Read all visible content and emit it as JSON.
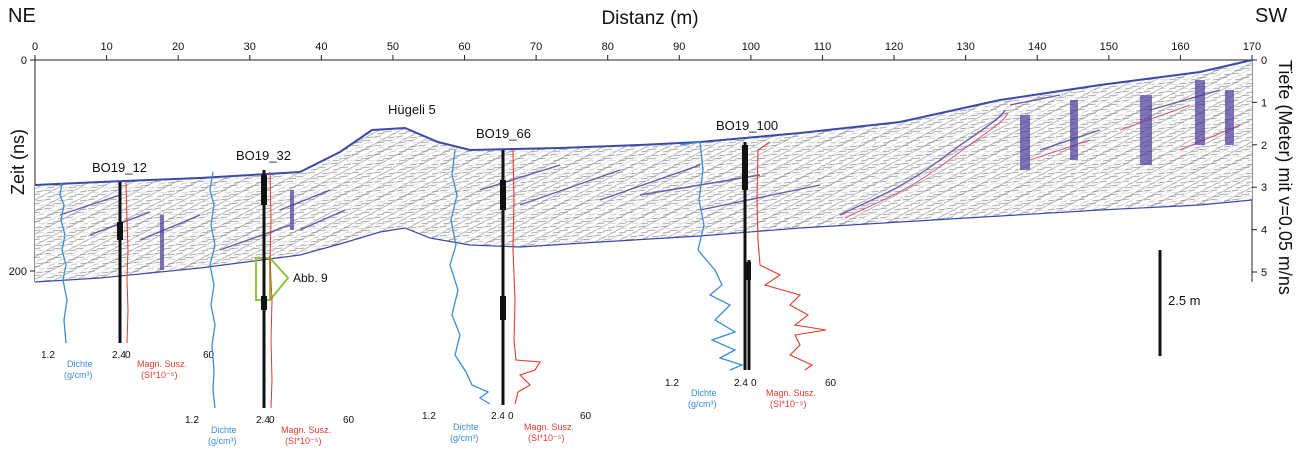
{
  "header": {
    "left_dir": "NE",
    "right_dir": "SW",
    "x_title": "Distanz (m)"
  },
  "axes": {
    "x_ticks": [
      "0",
      "10",
      "20",
      "30",
      "40",
      "50",
      "60",
      "70",
      "80",
      "90",
      "100",
      "110",
      "120",
      "130",
      "140",
      "150",
      "160",
      "170"
    ],
    "left_title": "Zeit (ns)",
    "left_ticks": [
      "0",
      "200"
    ],
    "right_title": "Tiefe (Meter) mit v=0.05 m/ns",
    "right_ticks": [
      "0",
      "1",
      "2",
      "3",
      "4",
      "5"
    ]
  },
  "labels": {
    "huegel": "Hügeli 5",
    "abb": "Abb. 9",
    "scale": "2.5 m"
  },
  "boreholes": [
    {
      "name": "BO19_12",
      "dichte_min": "1.2",
      "dichte_max": "2.4",
      "susz_min": "0",
      "susz_max": "60",
      "dichte_label": "Dichte",
      "dichte_unit": "(g/cm³)",
      "susz_label": "Magn. Susz.",
      "susz_unit": "(SI*10⁻⁵)"
    },
    {
      "name": "BO19_32",
      "dichte_min": "1.2",
      "dichte_max": "2.4",
      "susz_min": "0",
      "susz_max": "60",
      "dichte_label": "Dichte",
      "dichte_unit": "(g/cm³)",
      "susz_label": "Magn. Susz.",
      "susz_unit": "(SI*10⁻⁵)"
    },
    {
      "name": "BO19_66",
      "dichte_min": "1.2",
      "dichte_max": "2.4",
      "susz_min": "0",
      "susz_max": "60",
      "dichte_label": "Dichte",
      "dichte_unit": "(g/cm³)",
      "susz_label": "Magn. Susz.",
      "susz_unit": "(SI*10⁻⁵)"
    },
    {
      "name": "BO19_100",
      "dichte_min": "1.2",
      "dichte_max": "2.4",
      "susz_min": "0",
      "susz_max": "60",
      "dichte_label": "Dichte",
      "dichte_unit": "(g/cm³)",
      "susz_label": "Magn. Susz.",
      "susz_unit": "(SI*10⁻⁵)"
    }
  ],
  "colors": {
    "dichte": "#3a8ed6",
    "susz": "#e23a2c",
    "box": "#8cc43f"
  }
}
